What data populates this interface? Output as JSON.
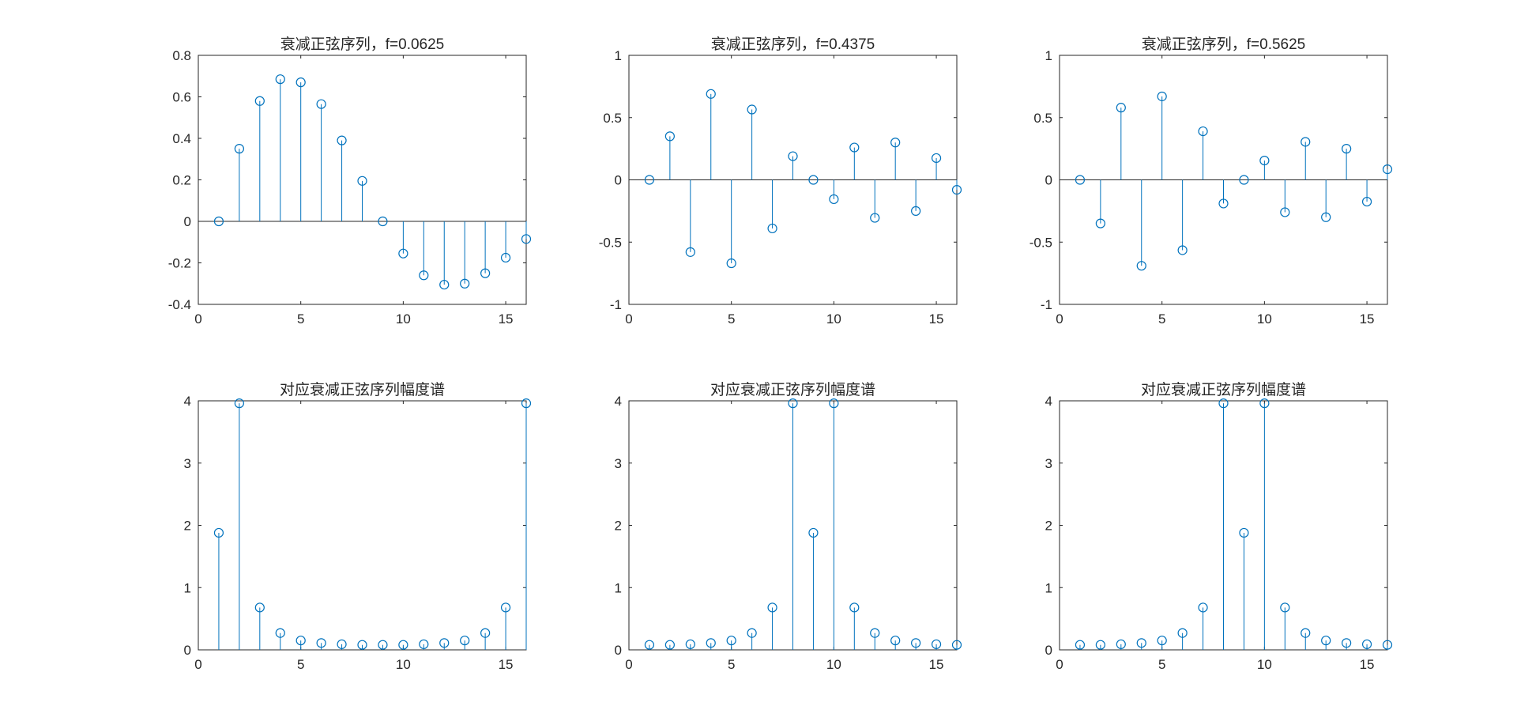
{
  "figure": {
    "stem_color": "#0072BD",
    "axis_color": "#262626"
  },
  "chart_data": [
    {
      "type": "stem",
      "title": "衰减正弦序列，f=0.0625",
      "xlim": [
        0,
        16
      ],
      "ylim": [
        -0.4,
        0.8
      ],
      "xticks": [
        0,
        5,
        10,
        15
      ],
      "xtick_labels": [
        "0",
        "5",
        "10",
        "15"
      ],
      "yticks": [
        -0.4,
        -0.2,
        0,
        0.2,
        0.4,
        0.6,
        0.8
      ],
      "ytick_labels": [
        "-0.4",
        "-0.2",
        "0",
        "0.2",
        "0.4",
        "0.6",
        "0.8"
      ],
      "x": [
        1,
        2,
        3,
        4,
        5,
        6,
        7,
        8,
        9,
        10,
        11,
        12,
        13,
        14,
        15,
        16
      ],
      "values": [
        0,
        0.35,
        0.58,
        0.685,
        0.67,
        0.565,
        0.39,
        0.195,
        0,
        -0.155,
        -0.26,
        -0.305,
        -0.3,
        -0.25,
        -0.175,
        -0.085
      ]
    },
    {
      "type": "stem",
      "title": "衰减正弦序列，f=0.4375",
      "xlim": [
        0,
        16
      ],
      "ylim": [
        -1,
        1
      ],
      "xticks": [
        0,
        5,
        10,
        15
      ],
      "xtick_labels": [
        "0",
        "5",
        "10",
        "15"
      ],
      "yticks": [
        -1,
        -0.5,
        0,
        0.5,
        1
      ],
      "ytick_labels": [
        "-1",
        "-0.5",
        "0",
        "0.5",
        "1"
      ],
      "x": [
        1,
        2,
        3,
        4,
        5,
        6,
        7,
        8,
        9,
        10,
        11,
        12,
        13,
        14,
        15,
        16
      ],
      "values": [
        0,
        0.35,
        -0.58,
        0.69,
        -0.67,
        0.565,
        -0.39,
        0.19,
        0,
        -0.155,
        0.26,
        -0.305,
        0.3,
        -0.25,
        0.175,
        -0.08
      ]
    },
    {
      "type": "stem",
      "title": "衰减正弦序列，f=0.5625",
      "xlim": [
        0,
        16
      ],
      "ylim": [
        -1,
        1
      ],
      "xticks": [
        0,
        5,
        10,
        15
      ],
      "xtick_labels": [
        "0",
        "5",
        "10",
        "15"
      ],
      "yticks": [
        -1,
        -0.5,
        0,
        0.5,
        1
      ],
      "ytick_labels": [
        "-1",
        "-0.5",
        "0",
        "0.5",
        "1"
      ],
      "x": [
        1,
        2,
        3,
        4,
        5,
        6,
        7,
        8,
        9,
        10,
        11,
        12,
        13,
        14,
        15,
        16
      ],
      "values": [
        0,
        -0.35,
        0.58,
        -0.69,
        0.67,
        -0.565,
        0.39,
        -0.19,
        0,
        0.155,
        -0.26,
        0.305,
        -0.3,
        0.25,
        -0.175,
        0.085
      ]
    },
    {
      "type": "stem",
      "title": "对应衰减正弦序列幅度谱",
      "xlim": [
        0,
        16
      ],
      "ylim": [
        0,
        4
      ],
      "xticks": [
        0,
        5,
        10,
        15
      ],
      "xtick_labels": [
        "0",
        "5",
        "10",
        "15"
      ],
      "yticks": [
        0,
        1,
        2,
        3,
        4
      ],
      "ytick_labels": [
        "0",
        "1",
        "2",
        "3",
        "4"
      ],
      "x": [
        1,
        2,
        3,
        4,
        5,
        6,
        7,
        8,
        9,
        10,
        11,
        12,
        13,
        14,
        15,
        16
      ],
      "values": [
        1.88,
        3.96,
        0.68,
        0.27,
        0.15,
        0.11,
        0.09,
        0.08,
        0.08,
        0.08,
        0.09,
        0.11,
        0.15,
        0.27,
        0.68,
        3.96
      ]
    },
    {
      "type": "stem",
      "title": "对应衰减正弦序列幅度谱",
      "xlim": [
        0,
        16
      ],
      "ylim": [
        0,
        4
      ],
      "xticks": [
        0,
        5,
        10,
        15
      ],
      "xtick_labels": [
        "0",
        "5",
        "10",
        "15"
      ],
      "yticks": [
        0,
        1,
        2,
        3,
        4
      ],
      "ytick_labels": [
        "0",
        "1",
        "2",
        "3",
        "4"
      ],
      "x": [
        1,
        2,
        3,
        4,
        5,
        6,
        7,
        8,
        9,
        10,
        11,
        12,
        13,
        14,
        15,
        16
      ],
      "values": [
        0.08,
        0.08,
        0.09,
        0.11,
        0.15,
        0.27,
        0.68,
        3.96,
        1.88,
        3.96,
        0.68,
        0.27,
        0.15,
        0.11,
        0.09,
        0.08
      ]
    },
    {
      "type": "stem",
      "title": "对应衰减正弦序列幅度谱",
      "xlim": [
        0,
        16
      ],
      "ylim": [
        0,
        4
      ],
      "xticks": [
        0,
        5,
        10,
        15
      ],
      "xtick_labels": [
        "0",
        "5",
        "10",
        "15"
      ],
      "yticks": [
        0,
        1,
        2,
        3,
        4
      ],
      "ytick_labels": [
        "0",
        "1",
        "2",
        "3",
        "4"
      ],
      "x": [
        1,
        2,
        3,
        4,
        5,
        6,
        7,
        8,
        9,
        10,
        11,
        12,
        13,
        14,
        15,
        16
      ],
      "values": [
        0.08,
        0.08,
        0.09,
        0.11,
        0.15,
        0.27,
        0.68,
        3.96,
        1.88,
        3.96,
        0.68,
        0.27,
        0.15,
        0.11,
        0.09,
        0.08
      ]
    }
  ]
}
